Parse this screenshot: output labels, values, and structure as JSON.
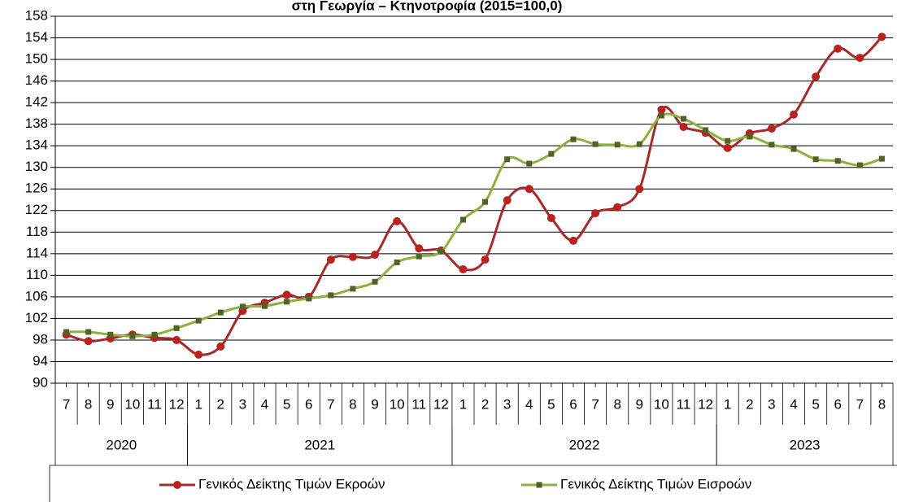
{
  "chart_data": {
    "type": "line",
    "title": "στη Γεωργία – Κτηνοτροφία (2015=100,0)",
    "categories": [
      "7",
      "8",
      "9",
      "10",
      "11",
      "12",
      "1",
      "2",
      "3",
      "4",
      "5",
      "6",
      "7",
      "8",
      "9",
      "10",
      "11",
      "12",
      "1",
      "2",
      "3",
      "4",
      "5",
      "6",
      "7",
      "8",
      "9",
      "10",
      "11",
      "12",
      "1",
      "2",
      "3",
      "4",
      "5",
      "6",
      "7",
      "8"
    ],
    "category_years": [
      "2020",
      "2020",
      "2020",
      "2020",
      "2020",
      "2020",
      "2021",
      "2021",
      "2021",
      "2021",
      "2021",
      "2021",
      "2021",
      "2021",
      "2021",
      "2021",
      "2021",
      "2021",
      "2022",
      "2022",
      "2022",
      "2022",
      "2022",
      "2022",
      "2022",
      "2022",
      "2022",
      "2022",
      "2022",
      "2022",
      "2023",
      "2023",
      "2023",
      "2023",
      "2023",
      "2023",
      "2023",
      "2023"
    ],
    "series": [
      {
        "name": "Γενικός Δείκτης Τιμών Εκροών",
        "color": "#a52a2a",
        "marker": "circle",
        "marker_color": "#c0201c",
        "values": [
          99.0,
          97.8,
          98.3,
          99.0,
          98.4,
          98.0,
          95.3,
          96.8,
          103.4,
          104.9,
          106.4,
          106.0,
          112.9,
          113.4,
          113.8,
          120.0,
          115.0,
          114.6,
          111.1,
          112.9,
          123.9,
          126.0,
          120.6,
          116.4,
          121.5,
          122.6,
          126.0,
          140.7,
          137.5,
          136.4,
          133.6,
          136.3,
          137.2,
          139.8,
          146.8,
          152.0,
          150.3,
          154.2
        ]
      },
      {
        "name": "Γενικός Δείκτης Τιμών Εισροών",
        "color": "#8db03e",
        "marker": "square",
        "marker_color": "#4f6228",
        "values": [
          99.5,
          99.5,
          99.0,
          98.7,
          99.0,
          100.2,
          101.6,
          103.1,
          104.2,
          104.3,
          105.1,
          105.7,
          106.3,
          107.5,
          108.8,
          112.4,
          113.5,
          114.4,
          120.3,
          123.6,
          131.5,
          130.7,
          132.5,
          135.2,
          134.3,
          134.2,
          134.3,
          139.6,
          139.0,
          136.9,
          134.9,
          135.7,
          134.2,
          133.4,
          131.5,
          131.2,
          130.4,
          131.6
        ]
      }
    ],
    "ylim": [
      90,
      158
    ],
    "yticks": [
      90,
      94,
      98,
      102,
      106,
      110,
      114,
      118,
      122,
      126,
      130,
      134,
      138,
      142,
      146,
      150,
      154,
      158
    ],
    "grid": true,
    "smooth": true,
    "legend": "bottom"
  }
}
